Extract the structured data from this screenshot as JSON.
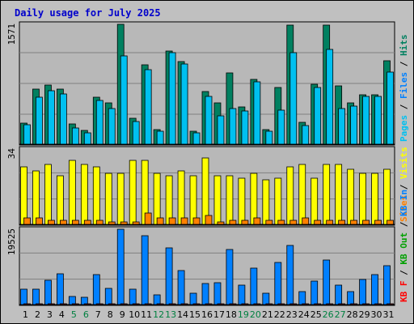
{
  "chart_data": {
    "type": "bar",
    "title": "Daily usage for July 2025",
    "colors": {
      "background": "#c0c0c0",
      "plot_background": "#b8b8b8",
      "frame": "#000000",
      "grid": "#808080",
      "title": "#0000cc",
      "weekday": "#000000",
      "weekend": "#008040",
      "hits": "#008060",
      "files": "#00c0f0",
      "pages": "#00c0f0",
      "visits": "#ffff00",
      "sites": "#ff8000",
      "kb_in": "#0080ff",
      "kb_out": "#00a000",
      "kb_f": "#ff0000",
      "separator": "#000000"
    },
    "x": [
      "1",
      "2",
      "3",
      "4",
      "5",
      "6",
      "7",
      "8",
      "9",
      "10",
      "11",
      "12",
      "13",
      "14",
      "15",
      "16",
      "17",
      "18",
      "19",
      "20",
      "21",
      "22",
      "23",
      "24",
      "25",
      "26",
      "27",
      "28",
      "29",
      "30",
      "31"
    ],
    "weekend": [
      5,
      6,
      12,
      13,
      19,
      20,
      26,
      27
    ],
    "panels": [
      {
        "ymax": "1571",
        "max_value": 1571,
        "right_label": [
          {
            "text": "Pages",
            "color": "#00c0f0"
          },
          {
            "text": " / ",
            "color": "#000000"
          },
          {
            "text": "Files",
            "color": "#0080ff"
          },
          {
            "text": " / ",
            "color": "#000000"
          },
          {
            "text": "Hits",
            "color": "#008060"
          }
        ],
        "series": [
          {
            "name": "Hits",
            "color": "#008060",
            "values": [
              280,
              720,
              770,
              720,
              270,
              180,
              620,
              540,
              1571,
              340,
              1040,
              190,
              1220,
              1080,
              170,
              690,
              540,
              930,
              490,
              850,
              190,
              740,
              1560,
              290,
              790,
              1560,
              760,
              540,
              650,
              650,
              1090
            ]
          },
          {
            "name": "Files",
            "color": "#00c0f0",
            "values": [
              250,
              620,
              700,
              660,
              210,
              150,
              570,
              470,
              1160,
              300,
              980,
              170,
              1200,
              1050,
              150,
              630,
              370,
              470,
              440,
              820,
              170,
              450,
              1200,
              240,
              740,
              1240,
              470,
              500,
              630,
              630,
              950
            ]
          }
        ]
      },
      {
        "ymax": "34",
        "max_value": 34,
        "right_label": [
          {
            "text": "Sites",
            "color": "#ff8000"
          },
          {
            "text": " / ",
            "color": "#000000"
          },
          {
            "text": "Visits",
            "color": "#ffff00"
          }
        ],
        "series": [
          {
            "name": "Visits",
            "color": "#ffff00",
            "values": [
              26,
              24,
              27,
              22,
              29,
              27,
              26,
              23,
              23,
              29,
              29,
              23,
              22,
              24,
              22,
              30,
              22,
              22,
              21,
              23,
              20,
              21,
              26,
              27,
              21,
              27,
              27,
              25,
              23,
              23,
              25
            ]
          },
          {
            "name": "Sites",
            "color": "#ff8000",
            "values": [
              3,
              3,
              2,
              2,
              2,
              2,
              2,
              1,
              1,
              1,
              5,
              3,
              3,
              3,
              3,
              4,
              1,
              2,
              2,
              3,
              2,
              2,
              2,
              3,
              2,
              2,
              2,
              2,
              2,
              2,
              2
            ]
          }
        ]
      },
      {
        "ymax": "19525",
        "max_value": 19525,
        "right_label": [
          {
            "text": "KB F",
            "color": "#ff0000"
          },
          {
            "text": " / ",
            "color": "#000000"
          },
          {
            "text": "KB Out",
            "color": "#00a000"
          },
          {
            "text": " / ",
            "color": "#000000"
          },
          {
            "text": "KB In",
            "color": "#0080ff"
          }
        ],
        "series": [
          {
            "name": "KB In",
            "color": "#0080ff",
            "values": [
              4050,
              4050,
              6300,
              7900,
              2150,
              1800,
              7700,
              4300,
              19525,
              4050,
              17750,
              2600,
              14700,
              8900,
              3000,
              5400,
              5600,
              14200,
              5000,
              9350,
              2900,
              11000,
              15400,
              3300,
              6100,
              11500,
              5100,
              3300,
              6500,
              7700,
              10000
            ]
          },
          {
            "name": "KB F",
            "color": "#ff0000",
            "values": [
              250,
              250,
              250,
              250,
              200,
              200,
              250,
              250,
              300,
              250,
              300,
              200,
              300,
              250,
              200,
              250,
              250,
              300,
              250,
              250,
              200,
              250,
              300,
              200,
              250,
              300,
              250,
              200,
              250,
              250,
              300
            ]
          }
        ]
      }
    ]
  }
}
